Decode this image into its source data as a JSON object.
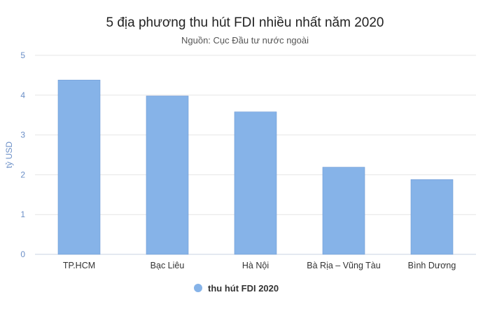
{
  "chart_data": {
    "type": "bar",
    "title": "5 địa phương thu hút FDI nhiều nhất năm 2020",
    "subtitle": "Nguồn: Cục Đầu tư nước ngoài",
    "xlabel": "",
    "ylabel": "tỷ USD",
    "ylim": [
      0,
      5
    ],
    "yticks": [
      0,
      1,
      2,
      3,
      4,
      5
    ],
    "grid": true,
    "legend_position": "bottom",
    "categories": [
      "TP.HCM",
      "Bạc Liêu",
      "Hà Nội",
      "Bà Rịa – Vũng Tàu",
      "Bình Dương"
    ],
    "series": [
      {
        "name": "thu hút FDI 2020",
        "values": [
          4.38,
          3.98,
          3.58,
          2.19,
          1.88
        ],
        "color": "#86b3e8"
      }
    ]
  }
}
